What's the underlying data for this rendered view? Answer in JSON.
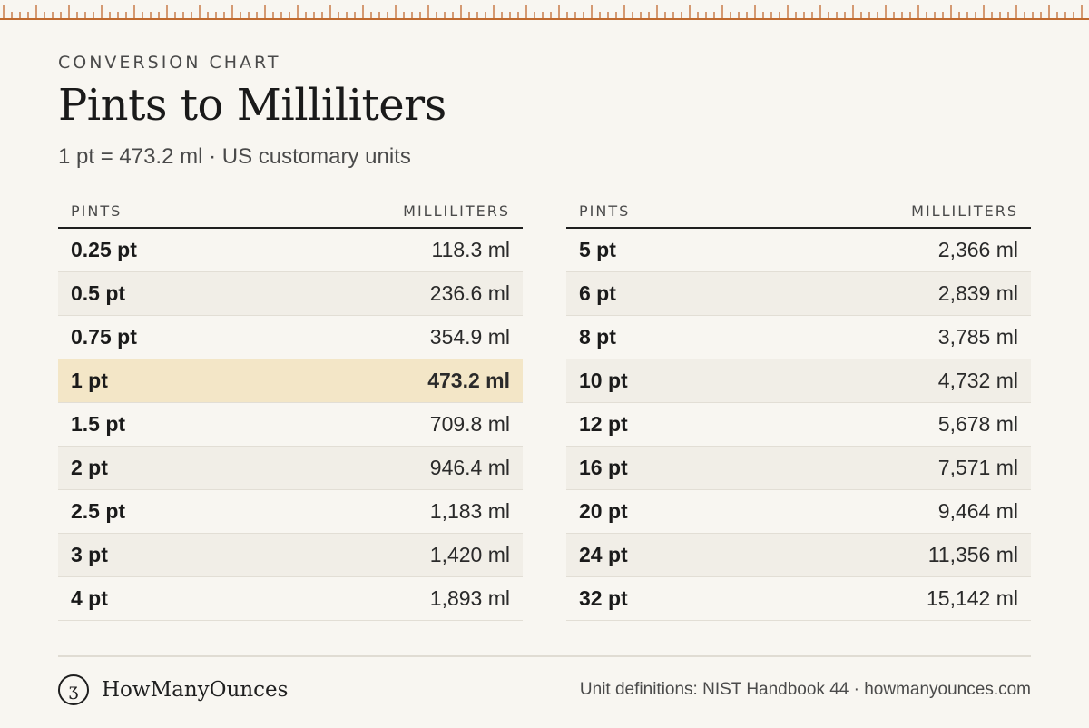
{
  "header": {
    "eyebrow": "CONVERSION CHART",
    "title": "Pints to Milliliters",
    "subtitle": "1 pt = 473.2 ml · US customary units"
  },
  "table": {
    "col_pints": "PINTS",
    "col_ml": "MILLILITERS",
    "left_rows": [
      {
        "pints": "0.25 pt",
        "ml": "118.3 ml"
      },
      {
        "pints": "0.5 pt",
        "ml": "236.6 ml"
      },
      {
        "pints": "0.75 pt",
        "ml": "354.9 ml"
      },
      {
        "pints": "1 pt",
        "ml": "473.2 ml"
      },
      {
        "pints": "1.5 pt",
        "ml": "709.8 ml"
      },
      {
        "pints": "2 pt",
        "ml": "946.4 ml"
      },
      {
        "pints": "2.5 pt",
        "ml": "1,183 ml"
      },
      {
        "pints": "3 pt",
        "ml": "1,420 ml"
      },
      {
        "pints": "4 pt",
        "ml": "1,893 ml"
      }
    ],
    "right_rows": [
      {
        "pints": "5 pt",
        "ml": "2,366 ml"
      },
      {
        "pints": "6 pt",
        "ml": "2,839 ml"
      },
      {
        "pints": "8 pt",
        "ml": "3,785 ml"
      },
      {
        "pints": "10 pt",
        "ml": "4,732 ml"
      },
      {
        "pints": "12 pt",
        "ml": "5,678 ml"
      },
      {
        "pints": "16 pt",
        "ml": "7,571 ml"
      },
      {
        "pints": "20 pt",
        "ml": "9,464 ml"
      },
      {
        "pints": "24 pt",
        "ml": "11,356 ml"
      },
      {
        "pints": "32 pt",
        "ml": "15,142 ml"
      }
    ]
  },
  "footer": {
    "logo_glyph": "ʒ",
    "brand": "HowManyOunces",
    "source": "Unit definitions: NIST Handbook 44 · howmanyounces.com"
  },
  "colors": {
    "background": "#f8f6f1",
    "accent": "#c06a2f",
    "highlight_row": "#f3e6c7",
    "alt_row": "#f1eee7"
  }
}
